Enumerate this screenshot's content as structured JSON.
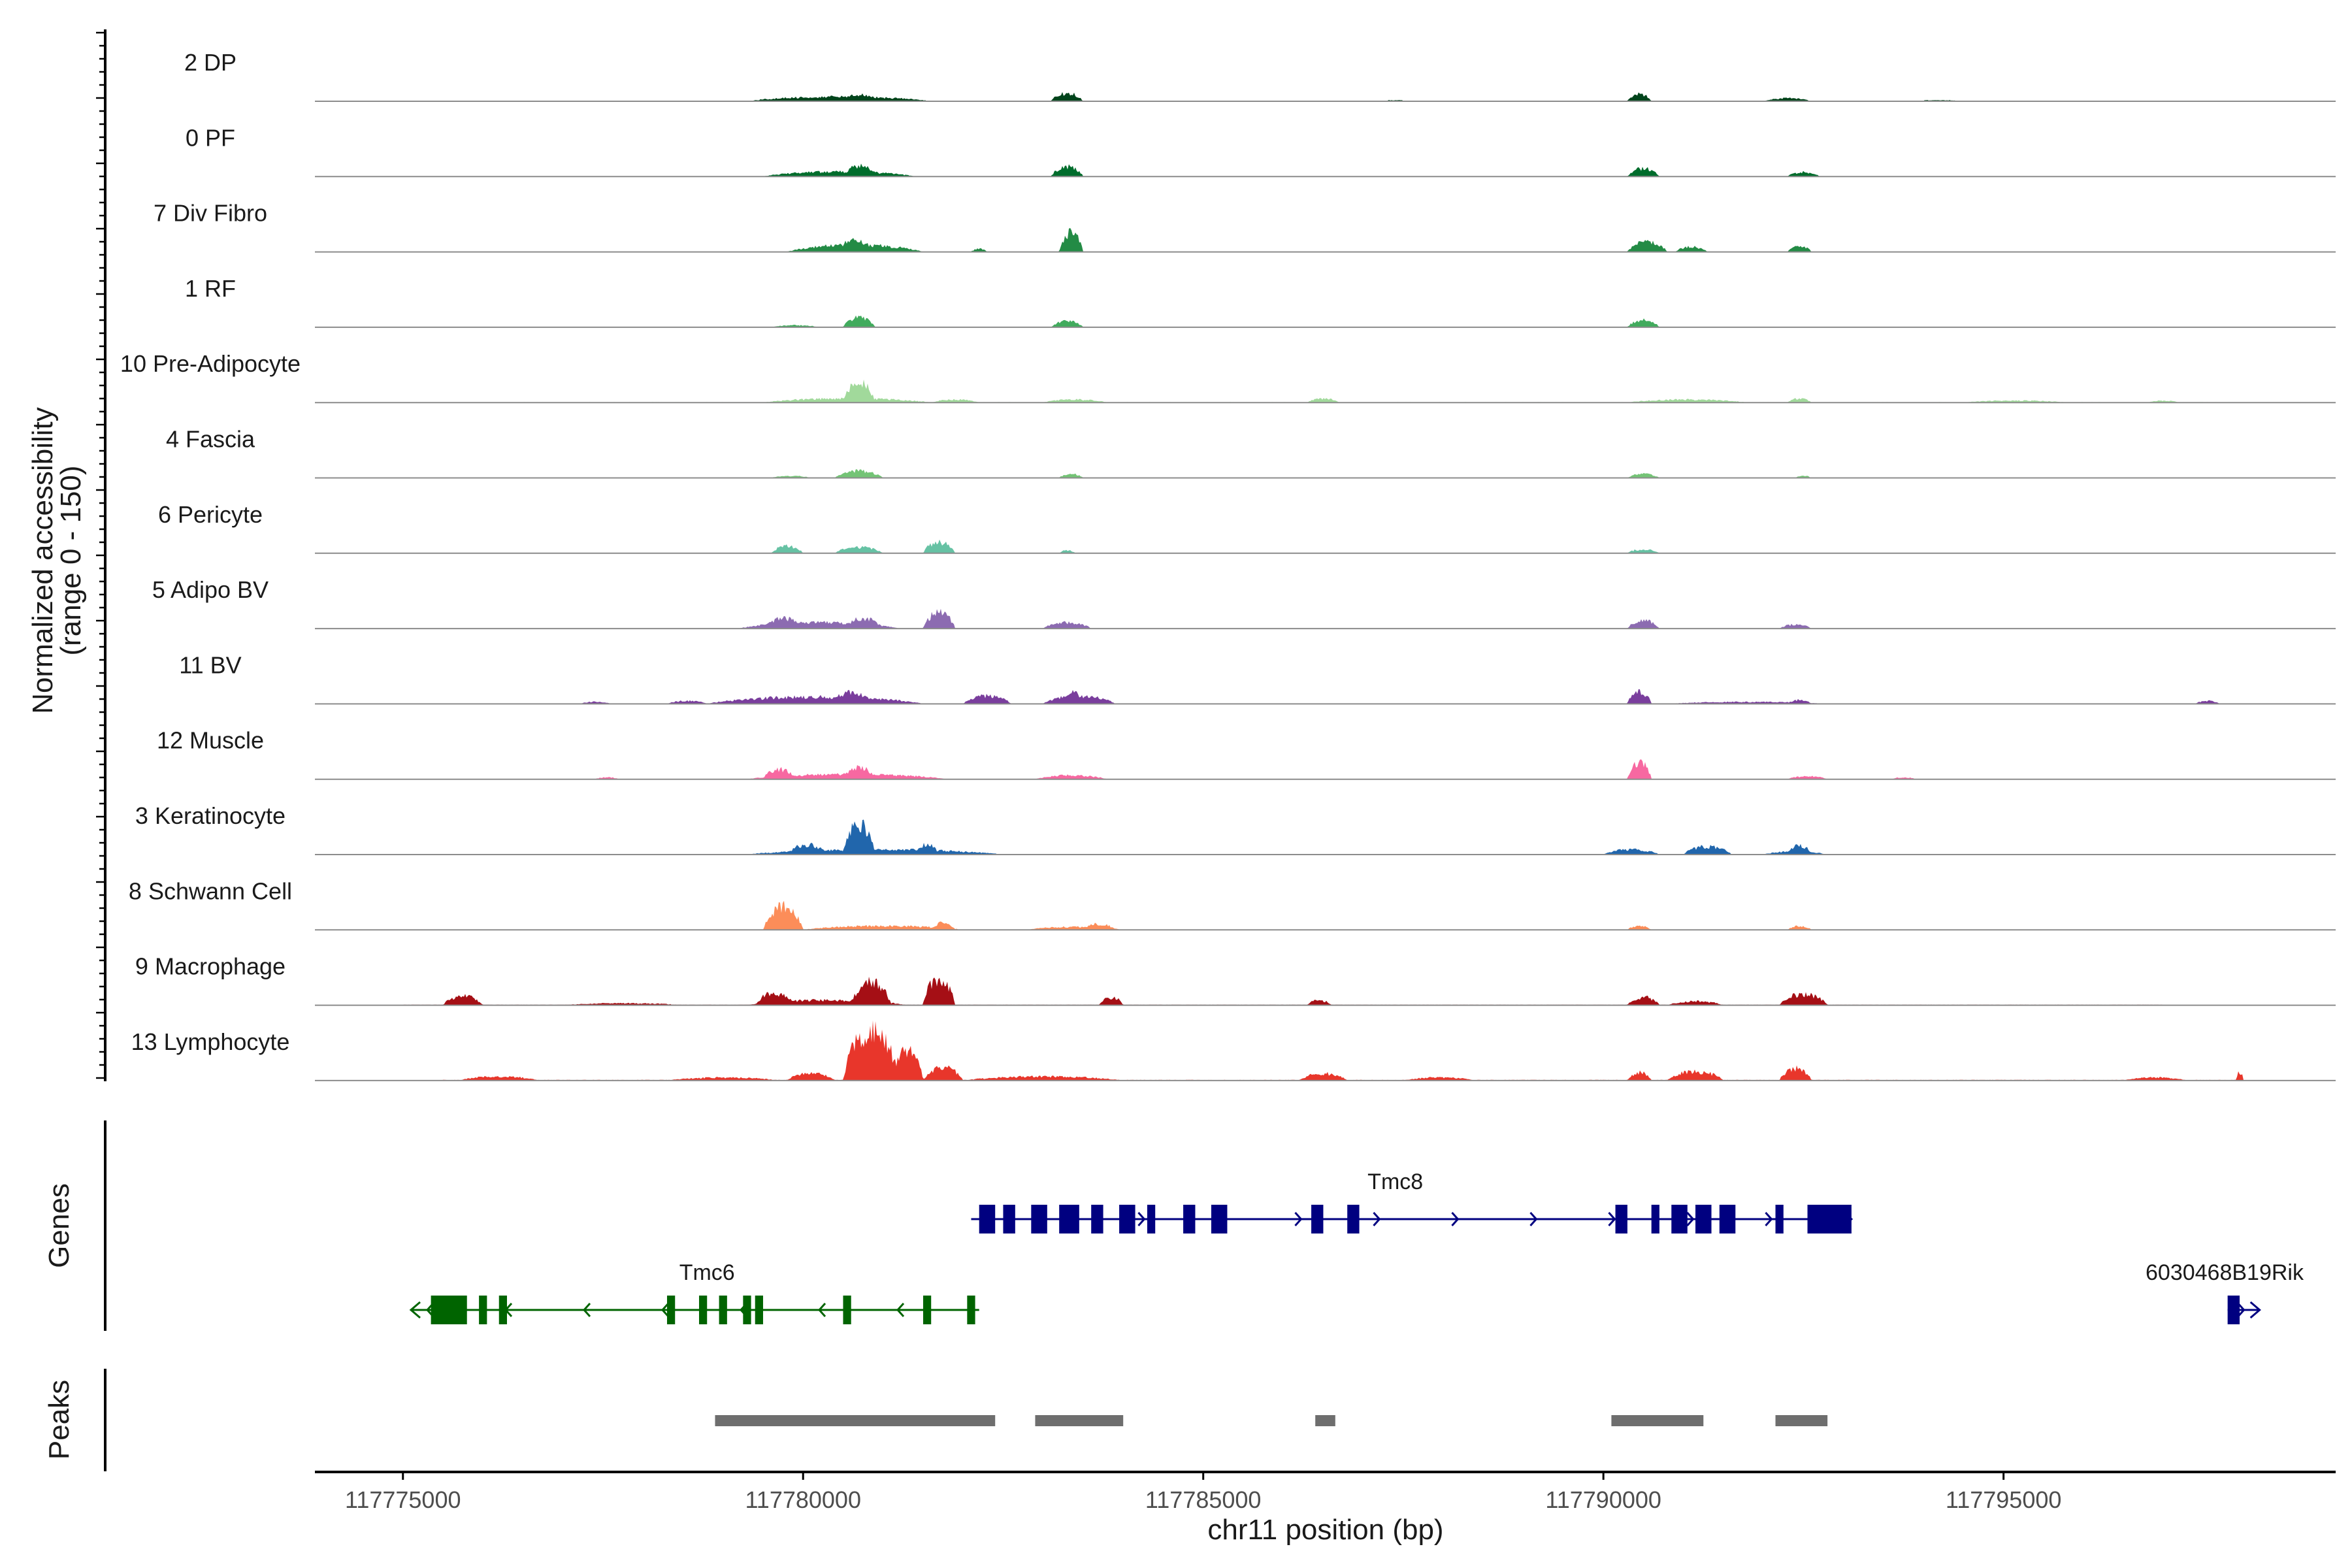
{
  "chart_data": {
    "type": "area",
    "title": "",
    "ylabel_line1": "Normalized accessibility",
    "ylabel_line2": "(range 0 - 150)",
    "ylim": [
      0,
      150
    ],
    "xlabel": "chr11 position (bp)",
    "xlim": [
      117773900,
      117799150
    ],
    "xticks": [
      117775000,
      117780000,
      117785000,
      117790000,
      117795000
    ],
    "xtick_labels": [
      "117775000",
      "117780000",
      "117785000",
      "117790000",
      "117795000"
    ],
    "tracks": [
      {
        "name": "2 DP",
        "color": "#00441b",
        "regions": [
          [
            117776000,
            117797800,
            0.5
          ],
          [
            117779300,
            117781600,
            9
          ],
          [
            117780500,
            117780900,
            14
          ],
          [
            117783100,
            117783500,
            16
          ],
          [
            117787300,
            117787500,
            2
          ],
          [
            117790300,
            117790600,
            14
          ],
          [
            117792000,
            117792600,
            6
          ],
          [
            117794000,
            117794400,
            2
          ]
        ]
      },
      {
        "name": "0 PF",
        "color": "#006d2c",
        "regions": [
          [
            117777000,
            117797800,
            0.5
          ],
          [
            117779500,
            117781400,
            10
          ],
          [
            117780500,
            117780900,
            22
          ],
          [
            117783100,
            117783500,
            20
          ],
          [
            117790300,
            117790700,
            16
          ],
          [
            117792300,
            117792700,
            9
          ]
        ]
      },
      {
        "name": "7 Div Fibro",
        "color": "#238b45",
        "regions": [
          [
            117777000,
            117797800,
            0.5
          ],
          [
            117779800,
            117781500,
            14
          ],
          [
            117780400,
            117780900,
            22
          ],
          [
            117782100,
            117782300,
            6
          ],
          [
            117783200,
            117783500,
            38
          ],
          [
            117790300,
            117790800,
            20
          ],
          [
            117790900,
            117791300,
            10
          ],
          [
            117792300,
            117792600,
            12
          ]
        ]
      },
      {
        "name": "1 RF",
        "color": "#41ab5d",
        "regions": [
          [
            117778000,
            117797800,
            0.5
          ],
          [
            117779600,
            117780200,
            4
          ],
          [
            117780500,
            117780900,
            20
          ],
          [
            117783100,
            117783500,
            12
          ],
          [
            117790300,
            117790700,
            14
          ]
        ]
      },
      {
        "name": "10 Pre-Adipocyte",
        "color": "#a1d99b",
        "regions": [
          [
            117775000,
            117798000,
            0.8
          ],
          [
            117779500,
            117781600,
            8
          ],
          [
            117780500,
            117780900,
            40
          ],
          [
            117781600,
            117782200,
            6
          ],
          [
            117783000,
            117783800,
            6
          ],
          [
            117786300,
            117786700,
            8
          ],
          [
            117790300,
            117791800,
            6
          ],
          [
            117792300,
            117792600,
            8
          ],
          [
            117794500,
            117795800,
            4
          ],
          [
            117796800,
            117797200,
            4
          ]
        ]
      },
      {
        "name": "4 Fascia",
        "color": "#74c476",
        "regions": [
          [
            117778000,
            117797800,
            0.5
          ],
          [
            117779600,
            117780100,
            4
          ],
          [
            117780400,
            117781000,
            14
          ],
          [
            117783200,
            117783500,
            8
          ],
          [
            117790300,
            117790700,
            8
          ],
          [
            117792400,
            117792600,
            4
          ]
        ]
      },
      {
        "name": "6 Pericyte",
        "color": "#66c2a4",
        "regions": [
          [
            117777500,
            117797800,
            0.4
          ],
          [
            117779600,
            117780000,
            14
          ],
          [
            117780400,
            117781000,
            12
          ],
          [
            117781500,
            117781900,
            22
          ],
          [
            117783200,
            117783400,
            6
          ],
          [
            117790300,
            117790700,
            8
          ]
        ]
      },
      {
        "name": "5 Adipo BV",
        "color": "#8c6bb1",
        "regions": [
          [
            117777500,
            117797800,
            0.5
          ],
          [
            117779200,
            117781200,
            12
          ],
          [
            117779500,
            117780000,
            20
          ],
          [
            117780500,
            117781000,
            20
          ],
          [
            117781500,
            117781900,
            32
          ],
          [
            117783000,
            117783600,
            12
          ],
          [
            117790300,
            117790700,
            16
          ],
          [
            117792200,
            117792600,
            8
          ]
        ]
      },
      {
        "name": "11 BV",
        "color": "#7a3e9d",
        "regions": [
          [
            117775500,
            117797800,
            0.6
          ],
          [
            117777200,
            117777600,
            4
          ],
          [
            117778300,
            117778800,
            6
          ],
          [
            117778800,
            117781500,
            14
          ],
          [
            117780300,
            117780900,
            22
          ],
          [
            117782000,
            117782600,
            16
          ],
          [
            117783000,
            117783900,
            16
          ],
          [
            117783200,
            117783500,
            24
          ],
          [
            117790300,
            117790600,
            24
          ],
          [
            117790800,
            117792800,
            4
          ],
          [
            117792300,
            117792600,
            8
          ],
          [
            117797400,
            117797700,
            6
          ]
        ]
      },
      {
        "name": "12 Muscle",
        "color": "#f768a1",
        "regions": [
          [
            117776600,
            117797800,
            0.5
          ],
          [
            117777400,
            117777700,
            4
          ],
          [
            117779300,
            117781800,
            10
          ],
          [
            117779500,
            117779900,
            20
          ],
          [
            117780500,
            117780900,
            24
          ],
          [
            117782900,
            117783800,
            8
          ],
          [
            117790300,
            117790600,
            34
          ],
          [
            117792300,
            117792800,
            6
          ],
          [
            117793600,
            117793900,
            4
          ]
        ]
      },
      {
        "name": "3 Keratinocyte",
        "color": "#2166ac",
        "regions": [
          [
            117777500,
            117797800,
            0.6
          ],
          [
            117779300,
            117782500,
            10
          ],
          [
            117779800,
            117780300,
            20
          ],
          [
            117780500,
            117780900,
            60
          ],
          [
            117781400,
            117781700,
            20
          ],
          [
            117790000,
            117790700,
            10
          ],
          [
            117791000,
            117791600,
            16
          ],
          [
            117792000,
            117792800,
            6
          ],
          [
            117792300,
            117792600,
            18
          ]
        ]
      },
      {
        "name": "8 Schwann Cell",
        "color": "#fc8d59",
        "regions": [
          [
            117776000,
            117797800,
            0.5
          ],
          [
            117779500,
            117780000,
            46
          ],
          [
            117780000,
            117782000,
            8
          ],
          [
            117781600,
            117781900,
            14
          ],
          [
            117782800,
            117784000,
            6
          ],
          [
            117783500,
            117783900,
            12
          ],
          [
            117790300,
            117790600,
            8
          ],
          [
            117792300,
            117792600,
            8
          ]
        ]
      },
      {
        "name": "9 Macrophage",
        "color": "#a50f15",
        "regions": [
          [
            117775000,
            117797000,
            1
          ],
          [
            117775500,
            117776000,
            18
          ],
          [
            117777000,
            117778500,
            4
          ],
          [
            117779300,
            117781300,
            10
          ],
          [
            117779400,
            117779900,
            24
          ],
          [
            117780600,
            117781100,
            46
          ],
          [
            117781500,
            117781900,
            54
          ],
          [
            117783700,
            117784000,
            16
          ],
          [
            117786300,
            117786600,
            10
          ],
          [
            117790300,
            117790700,
            16
          ],
          [
            117790800,
            117791500,
            8
          ],
          [
            117792200,
            117792800,
            22
          ]
        ]
      },
      {
        "name": "13 Lymphocyte",
        "color": "#e8362b",
        "regions": [
          [
            117775500,
            117798000,
            1.2
          ],
          [
            117775700,
            117776700,
            8
          ],
          [
            117778300,
            117779700,
            6
          ],
          [
            117779800,
            117780400,
            14
          ],
          [
            117780500,
            117781200,
            100
          ],
          [
            117781100,
            117781500,
            60
          ],
          [
            117781500,
            117782000,
            26
          ],
          [
            117782000,
            117784000,
            8
          ],
          [
            117786200,
            117786800,
            14
          ],
          [
            117787500,
            117788400,
            6
          ],
          [
            117790300,
            117790600,
            16
          ],
          [
            117790800,
            117791500,
            18
          ],
          [
            117792200,
            117792600,
            24
          ],
          [
            117796500,
            117797300,
            6
          ],
          [
            117797900,
            117798000,
            16
          ]
        ]
      }
    ],
    "genes_label": "Genes",
    "genes": [
      {
        "name": "Tmc8",
        "strand": "+",
        "color": "#000080",
        "start": 117782100,
        "end": 117793100,
        "row": 0,
        "exons": [
          [
            117782200,
            117782400
          ],
          [
            117782500,
            117782650
          ],
          [
            117782850,
            117783050
          ],
          [
            117783200,
            117783450
          ],
          [
            117783600,
            117783750
          ],
          [
            117783950,
            117784150
          ],
          [
            117784300,
            117784400
          ],
          [
            117784750,
            117784900
          ],
          [
            117785100,
            117785300
          ],
          [
            117786350,
            117786500
          ],
          [
            117786800,
            117786950
          ],
          [
            117790150,
            117790300
          ],
          [
            117790600,
            117790700
          ],
          [
            117790850,
            117791050
          ],
          [
            117791150,
            117791350
          ],
          [
            117791450,
            117791650
          ],
          [
            117792150,
            117792250
          ],
          [
            117792550,
            117793100
          ]
        ]
      },
      {
        "name": "Tmc6",
        "strand": "-",
        "color": "#006400",
        "start": 117775100,
        "end": 117782200,
        "row": 1,
        "exons": [
          [
            117775350,
            117775800
          ],
          [
            117775950,
            117776050
          ],
          [
            117776200,
            117776300
          ],
          [
            117778300,
            117778400
          ],
          [
            117778700,
            117778800
          ],
          [
            117778950,
            117779050
          ],
          [
            117779250,
            117779350
          ],
          [
            117779400,
            117779500
          ],
          [
            117780500,
            117780600
          ],
          [
            117781500,
            117781600
          ],
          [
            117782050,
            117782150
          ]
        ]
      },
      {
        "name": "6030468B19Rik",
        "strand": "+",
        "color": "#000080",
        "start": 117797800,
        "end": 117798200,
        "row": 1,
        "exons": [
          [
            117797800,
            117797950
          ]
        ]
      }
    ],
    "peaks_label": "Peaks",
    "peaks": [
      [
        117778900,
        117782400
      ],
      [
        117782900,
        117784000
      ],
      [
        117786400,
        117786650
      ],
      [
        117790100,
        117791250
      ],
      [
        117792150,
        117792800
      ]
    ]
  }
}
